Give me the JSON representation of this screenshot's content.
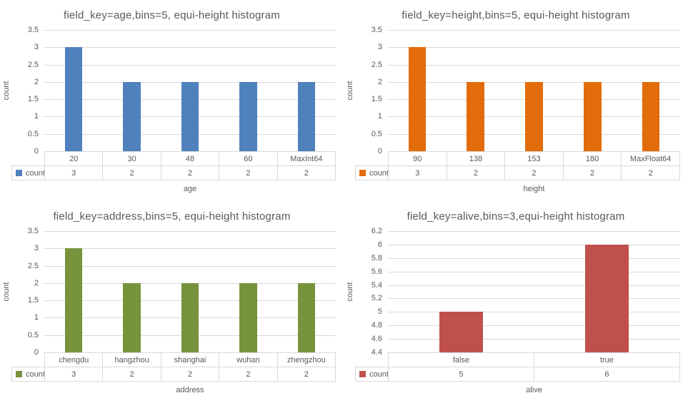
{
  "page": {
    "background": "#ffffff",
    "text_color": "#595959",
    "grid_color": "#d9d9d9"
  },
  "chart_data": [
    {
      "type": "bar",
      "title": "field_key=age,bins=5, equi-height histogram",
      "xlabel": "age",
      "ylabel": "count",
      "categories": [
        "20",
        "30",
        "48",
        "60",
        "MaxInt64"
      ],
      "series": [
        {
          "name": "count",
          "values": [
            3,
            2,
            2,
            2,
            2
          ]
        }
      ],
      "ylim": [
        0,
        3.5
      ],
      "yticks": [
        "3.5",
        "3",
        "2.5",
        "2",
        "1.5",
        "1",
        "0.5",
        "0"
      ],
      "color": "#4f81bd",
      "grid": true,
      "legend_position": "table-left"
    },
    {
      "type": "bar",
      "title": "field_key=height,bins=5, equi-height histogram",
      "xlabel": "height",
      "ylabel": "count",
      "categories": [
        "90",
        "138",
        "153",
        "180",
        "MaxFloat64"
      ],
      "series": [
        {
          "name": "count",
          "values": [
            3,
            2,
            2,
            2,
            2
          ]
        }
      ],
      "ylim": [
        0,
        3.5
      ],
      "yticks": [
        "3.5",
        "3",
        "2.5",
        "2",
        "1.5",
        "1",
        "0.5",
        "0"
      ],
      "color": "#e26b0a",
      "grid": true,
      "legend_position": "table-left"
    },
    {
      "type": "bar",
      "title": "field_key=address,bins=5, equi-height histogram",
      "xlabel": "address",
      "ylabel": "count",
      "categories": [
        "chengdu",
        "hangzhou",
        "shanghai",
        "wuhan",
        "zhengzhou"
      ],
      "series": [
        {
          "name": "count",
          "values": [
            3,
            2,
            2,
            2,
            2
          ]
        }
      ],
      "ylim": [
        0,
        3.5
      ],
      "yticks": [
        "3.5",
        "3",
        "2.5",
        "2",
        "1.5",
        "1",
        "0.5",
        "0"
      ],
      "color": "#77933c",
      "grid": true,
      "legend_position": "table-left"
    },
    {
      "type": "bar",
      "title": "field_key=alive,bins=3,equi-height histogram",
      "xlabel": "alive",
      "ylabel": "count",
      "categories": [
        "false",
        "true"
      ],
      "series": [
        {
          "name": "count",
          "values": [
            5,
            6
          ]
        }
      ],
      "ylim": [
        4.4,
        6.2
      ],
      "yticks": [
        "6.2",
        "6",
        "5.8",
        "5.6",
        "5.4",
        "5.2",
        "5",
        "4.8",
        "4.6",
        "4.4"
      ],
      "color": "#c0504d",
      "grid": true,
      "legend_position": "table-left"
    }
  ]
}
